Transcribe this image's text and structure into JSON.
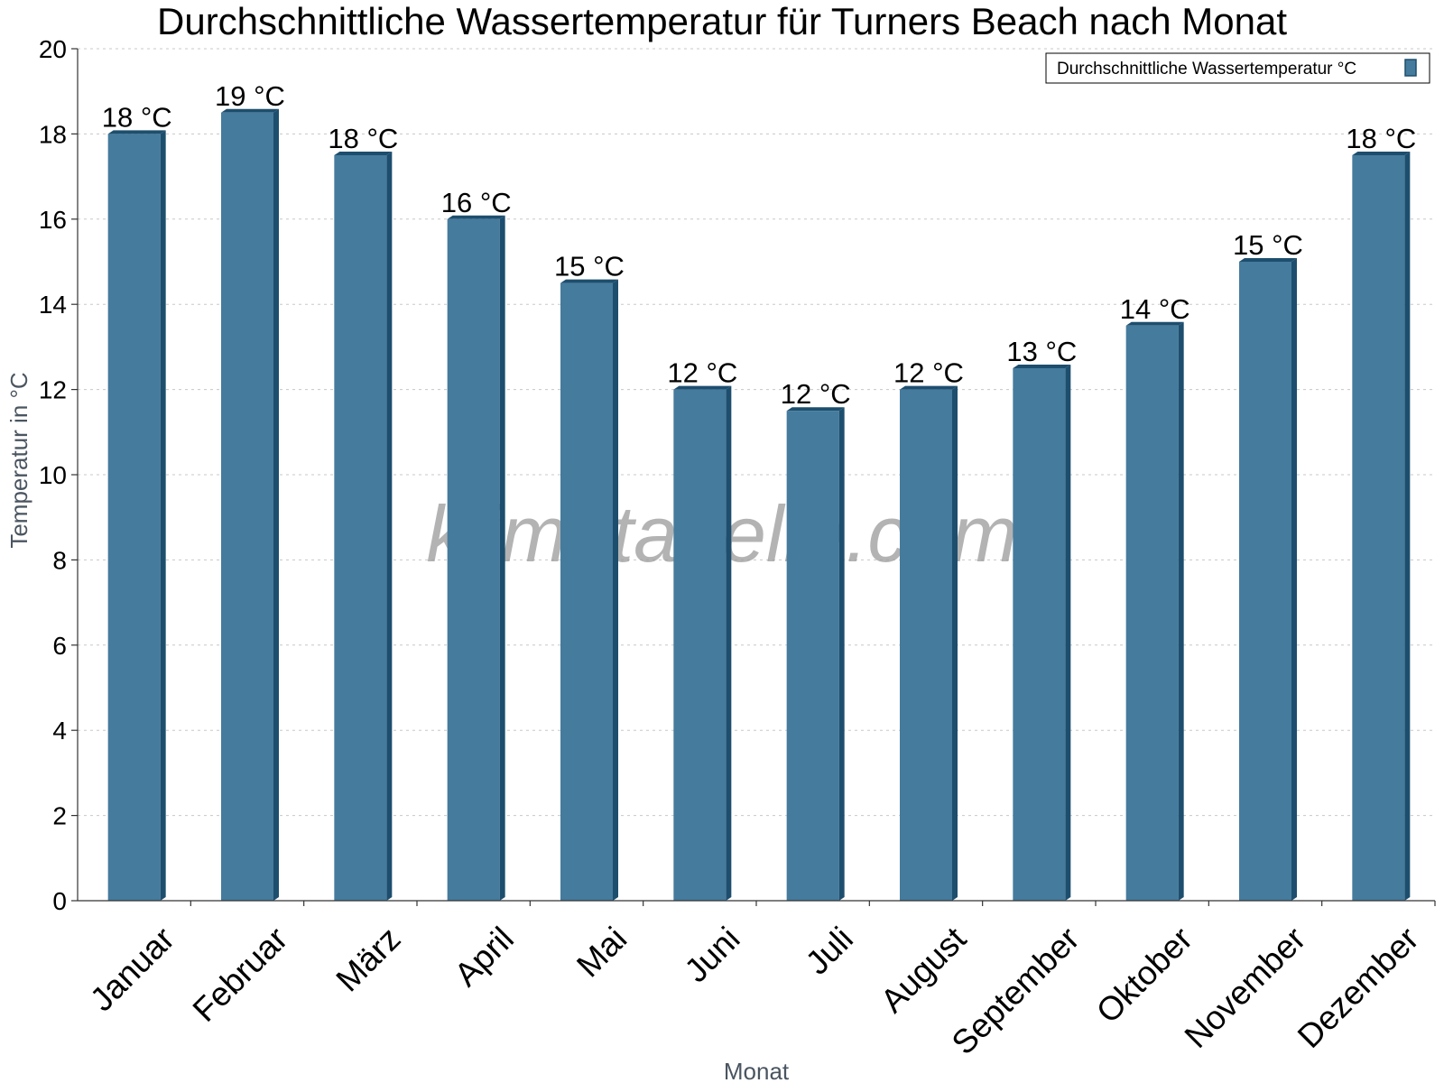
{
  "chart_data": {
    "type": "bar",
    "title": "Durchschnittliche Wassertemperatur für Turners Beach nach Monat",
    "xlabel": "Monat",
    "ylabel": "Temperatur in °C",
    "ylim": [
      0,
      20
    ],
    "yticks": [
      0,
      2,
      4,
      6,
      8,
      10,
      12,
      14,
      16,
      18,
      20
    ],
    "grid": true,
    "legend_position": "top-right",
    "categories": [
      "Januar",
      "Februar",
      "März",
      "April",
      "Mai",
      "Juni",
      "Juli",
      "August",
      "September",
      "Oktober",
      "November",
      "Dezember"
    ],
    "series": [
      {
        "name": "Durchschnittliche Wassertemperatur °C",
        "values": [
          18,
          18.5,
          17.5,
          16,
          14.5,
          12,
          11.5,
          12,
          12.5,
          13.5,
          15,
          17.5
        ],
        "labels": [
          "18 °C",
          "19 °C",
          "18 °C",
          "16 °C",
          "15 °C",
          "12 °C",
          "12 °C",
          "12 °C",
          "13 °C",
          "14 °C",
          "15 °C",
          "18 °C"
        ],
        "color": "#457b9d",
        "side_color": "#1d4e6e"
      }
    ],
    "watermark": "klimatabelle.com"
  }
}
